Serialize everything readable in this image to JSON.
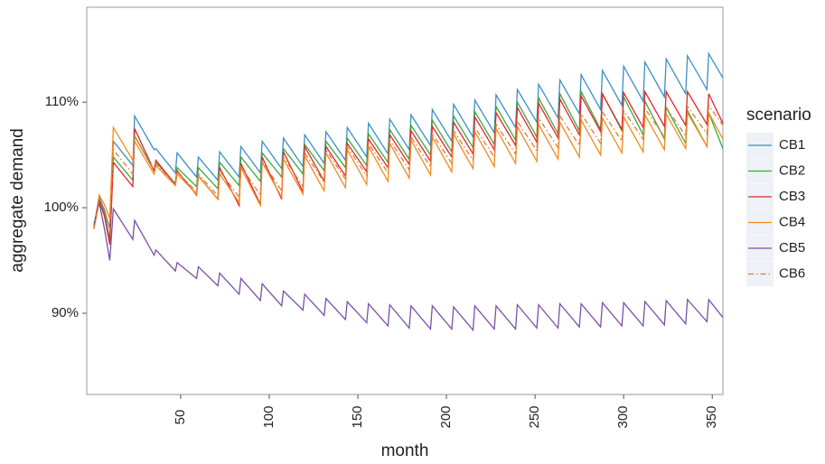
{
  "chart_data": {
    "type": "line",
    "xlabel": "month",
    "ylabel": "aggregate demand",
    "legend_title": "scenario",
    "legend": "right",
    "xlim": [
      -3,
      356
    ],
    "ylim": [
      82.3,
      119
    ],
    "xticks": [
      50,
      100,
      150,
      200,
      250,
      300,
      350
    ],
    "yticks": [
      {
        "value": 90,
        "label": "90%"
      },
      {
        "value": 100,
        "label": "100%"
      },
      {
        "value": 110,
        "label": "110%"
      }
    ],
    "grid": false,
    "x": [
      1,
      4,
      7,
      10,
      12,
      23,
      24,
      35,
      36,
      47,
      48,
      59,
      60,
      71,
      72,
      83,
      84,
      95,
      96,
      107,
      108,
      119,
      120,
      131,
      132,
      143,
      144,
      155,
      156,
      167,
      168,
      179,
      180,
      191,
      192,
      203,
      204,
      215,
      216,
      227,
      228,
      239,
      240,
      251,
      252,
      263,
      264,
      275,
      276,
      287,
      288,
      299,
      300,
      311,
      312,
      323,
      324,
      335,
      336,
      347,
      348,
      356
    ],
    "series": [
      {
        "name": "CB1",
        "color": "#3a8fc4",
        "linestyle": "solid",
        "values": [
          98.2,
          101.0,
          99.8,
          98.0,
          106.3,
          104.0,
          108.7,
          105.5,
          105.6,
          103.3,
          105.2,
          102.9,
          104.8,
          102.6,
          105.3,
          102.9,
          105.8,
          103.3,
          106.3,
          103.7,
          106.6,
          103.9,
          106.9,
          104.2,
          107.2,
          104.5,
          107.6,
          104.8,
          108.0,
          105.1,
          108.4,
          105.5,
          108.8,
          105.9,
          109.3,
          106.3,
          109.8,
          106.7,
          110.2,
          107.1,
          110.7,
          107.6,
          111.2,
          108.1,
          111.7,
          108.5,
          112.1,
          108.9,
          112.6,
          109.3,
          113.0,
          109.7,
          113.4,
          110.1,
          113.8,
          110.5,
          114.1,
          110.8,
          114.4,
          111.2,
          114.6,
          112.3
        ]
      },
      {
        "name": "CB2",
        "color": "#3aaa3a",
        "linestyle": "solid",
        "values": [
          98.0,
          100.8,
          99.5,
          97.0,
          104.8,
          102.6,
          106.8,
          103.5,
          104.3,
          102.3,
          103.8,
          102.0,
          103.8,
          101.8,
          104.3,
          102.1,
          104.8,
          102.5,
          105.2,
          102.9,
          105.6,
          103.2,
          106.0,
          103.5,
          106.3,
          103.8,
          106.6,
          104.0,
          107.0,
          104.3,
          107.4,
          104.6,
          107.8,
          105.0,
          108.3,
          105.3,
          108.7,
          105.7,
          109.1,
          106.0,
          109.6,
          106.4,
          110.0,
          106.7,
          110.4,
          107.0,
          110.8,
          107.3,
          111.0,
          107.4,
          110.8,
          107.3,
          110.5,
          106.9,
          110.1,
          106.5,
          109.5,
          106.1,
          109.2,
          105.8,
          109.0,
          105.6
        ]
      },
      {
        "name": "CB3",
        "color": "#e0262b",
        "linestyle": "solid",
        "values": [
          98.0,
          100.6,
          99.2,
          96.5,
          104.3,
          102.0,
          107.5,
          103.5,
          104.5,
          102.2,
          103.5,
          101.2,
          103.0,
          100.8,
          103.8,
          100.2,
          104.2,
          100.3,
          104.8,
          100.8,
          105.3,
          101.5,
          105.8,
          102.5,
          105.8,
          103.0,
          106.1,
          103.4,
          106.5,
          103.8,
          106.9,
          104.1,
          107.3,
          104.4,
          107.7,
          104.8,
          108.1,
          105.1,
          108.6,
          105.5,
          109.0,
          105.9,
          109.5,
          106.2,
          109.9,
          106.6,
          110.3,
          106.9,
          110.6,
          107.2,
          110.8,
          107.4,
          110.9,
          107.6,
          111.0,
          107.7,
          111.0,
          107.8,
          111.0,
          107.9,
          110.8,
          108.0
        ]
      },
      {
        "name": "CB4",
        "color": "#f28a1e",
        "linestyle": "solid",
        "values": [
          98.0,
          101.2,
          100.3,
          99.0,
          107.6,
          104.5,
          106.3,
          103.2,
          104.0,
          102.1,
          103.2,
          101.3,
          103.0,
          100.8,
          103.2,
          100.5,
          103.8,
          100.2,
          104.3,
          101.0,
          104.6,
          101.3,
          104.9,
          101.6,
          105.2,
          101.9,
          105.5,
          102.2,
          105.8,
          102.5,
          106.1,
          102.8,
          106.4,
          103.1,
          106.7,
          103.4,
          107.0,
          103.7,
          107.2,
          103.9,
          107.5,
          104.2,
          107.7,
          104.4,
          107.9,
          104.6,
          108.1,
          104.8,
          108.3,
          105.0,
          108.5,
          105.2,
          108.6,
          105.3,
          108.8,
          105.5,
          108.9,
          105.6,
          109.0,
          105.8,
          109.0,
          106.5
        ]
      },
      {
        "name": "CB5",
        "color": "#7b4fa8",
        "linestyle": "solid",
        "values": [
          98.4,
          100.5,
          98.0,
          95.0,
          99.9,
          97.0,
          98.8,
          95.5,
          96.0,
          94.0,
          94.8,
          93.3,
          94.4,
          92.6,
          93.8,
          91.8,
          93.3,
          91.2,
          92.8,
          90.7,
          92.1,
          90.3,
          91.8,
          89.8,
          91.4,
          89.4,
          91.1,
          89.1,
          90.9,
          88.8,
          90.8,
          88.6,
          90.7,
          88.5,
          90.7,
          88.5,
          90.6,
          88.4,
          90.7,
          88.5,
          90.7,
          88.5,
          90.8,
          88.6,
          90.8,
          88.6,
          90.9,
          88.7,
          90.9,
          88.7,
          91.0,
          88.8,
          91.0,
          88.8,
          91.1,
          88.9,
          91.2,
          89.0,
          91.3,
          89.2,
          91.3,
          89.6
        ]
      },
      {
        "name": "CB6",
        "color": "#e07a3a",
        "linestyle": "dashdot",
        "values": [
          98.0,
          100.9,
          99.7,
          98.0,
          105.5,
          103.2,
          106.8,
          103.6,
          104.2,
          102.2,
          103.4,
          101.5,
          103.2,
          101.1,
          103.5,
          101.0,
          103.9,
          101.2,
          104.4,
          101.6,
          104.8,
          102.0,
          105.2,
          102.4,
          105.5,
          102.7,
          105.8,
          103.0,
          106.1,
          103.3,
          106.4,
          103.6,
          106.7,
          103.9,
          107.0,
          104.2,
          107.3,
          104.5,
          107.6,
          104.8,
          107.9,
          105.1,
          108.2,
          105.4,
          108.5,
          105.7,
          108.7,
          105.9,
          108.9,
          106.1,
          109.1,
          106.3,
          109.2,
          106.5,
          109.4,
          106.7,
          109.5,
          106.8,
          109.6,
          107.0,
          109.7,
          107.8
        ]
      }
    ]
  }
}
